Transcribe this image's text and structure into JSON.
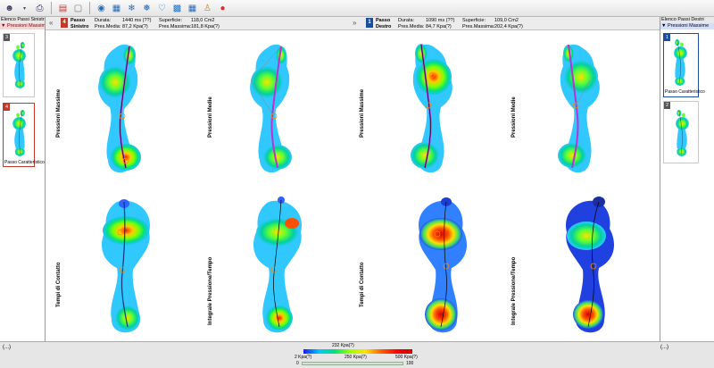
{
  "toolbar": {
    "icons": [
      "user-icon",
      "dropdown-icon",
      "print-icon",
      "chart-icon",
      "image-icon",
      "globe-icon",
      "document-icon",
      "foot-left-icon",
      "foot-right-icon",
      "feet-icon",
      "bars-icon",
      "grid-icon",
      "person-icon",
      "palette-icon"
    ]
  },
  "left_panel": {
    "title": "Elenco Passi Sinistri",
    "subtitle": "▼ Pressioni Massime",
    "thumbs": [
      {
        "num": "3",
        "label": ""
      },
      {
        "num": "4",
        "label": "Passo Caratteristico"
      }
    ]
  },
  "right_panel": {
    "title": "Elenco Passi Destri",
    "subtitle": "▼ Pressioni Massime",
    "thumbs": [
      {
        "num": "1",
        "label": "Passo Caratteristico"
      },
      {
        "num": "2",
        "label": ""
      }
    ]
  },
  "info": {
    "nav_prev": "«",
    "nav_next": "»",
    "left": {
      "num": "4",
      "title_line1": "Passo",
      "title_line2": "Sinistro",
      "durata_label": "Durata:",
      "durata_value": "1440 ms (??)",
      "presmedia_label": "Pres.Media:",
      "presmedia_value": "87,2 Kpa(?)",
      "superficie_label": "Superficie:",
      "superficie_value": "118,0 Cm2",
      "presmax_label": "Pres.Massima:",
      "presmax_value": "181,8 Kpa(?)"
    },
    "right": {
      "num": "1",
      "title_line1": "Passo",
      "title_line2": "Destro",
      "durata_label": "Durata:",
      "durata_value": "1090 ms (??)",
      "presmedia_label": "Pres.Media:",
      "presmedia_value": "84,7 Kpa(?)",
      "superficie_label": "Superficie:",
      "superficie_value": "109,0 Cm2",
      "presmax_label": "Pres.Massima:",
      "presmax_value": "202,4 Kpa(?)"
    }
  },
  "panels": {
    "labels": [
      "Pressioni Massime",
      "Pressioni Medie",
      "Pressioni Massime",
      "Pressioni Medie",
      "Tempi di Contatto",
      "Integrale Pressione/Tempo",
      "Tempi di Contatto",
      "Integrale Pressione/Tempo"
    ]
  },
  "bottom": {
    "left_dots": "(...)",
    "right_dots": "(...)",
    "scale_top": "232 Kpa(?)",
    "scale_left": "2 Kpa(?)",
    "scale_mid": "250 Kpa(?)",
    "scale_right": "500 Kpa(?)",
    "slider_min": "0",
    "slider_max": "100"
  },
  "colors": {
    "left_badge": "#c0392b",
    "right_badge": "#1a4fa0",
    "heat_low": "#00c8ff",
    "heat_mid": "#a0ff00",
    "heat_high": "#ff2000"
  }
}
